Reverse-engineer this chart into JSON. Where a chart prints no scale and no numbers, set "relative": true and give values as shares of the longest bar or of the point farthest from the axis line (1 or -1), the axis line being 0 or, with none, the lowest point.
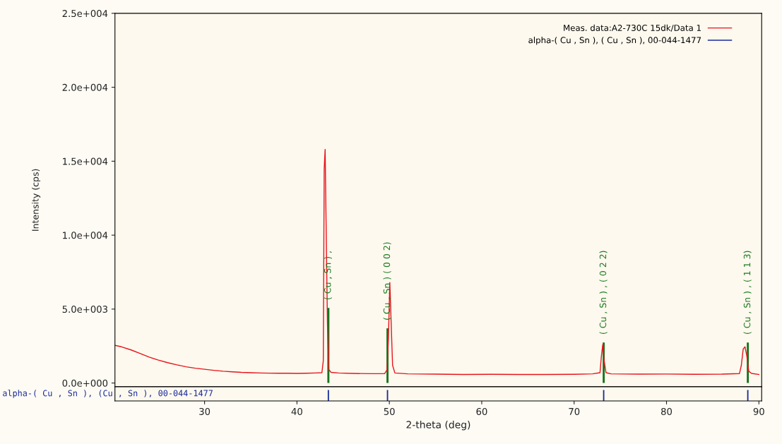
{
  "chart_data": [
    {
      "type": "line",
      "ylabel": "Intensity (cps)",
      "xlim": [
        20.3,
        90.3
      ],
      "ylim": [
        -250,
        25000
      ],
      "yticks": [
        {
          "value": 0,
          "label": "0.0e+000"
        },
        {
          "value": 5000,
          "label": "5.0e+003"
        },
        {
          "value": 10000,
          "label": "1.0e+004"
        },
        {
          "value": 15000,
          "label": "1.5e+004"
        },
        {
          "value": 20000,
          "label": "2.0e+004"
        },
        {
          "value": 25000,
          "label": "2.5e+004"
        }
      ],
      "tick_labels": "y",
      "legend": "top right",
      "grid": false,
      "marker": "none",
      "series": [
        {
          "type": "line",
          "name": "Meas. data:A2-730C 15dk/Data 1",
          "color": "#e8141c",
          "x": [
            20.3,
            21,
            22,
            23,
            24,
            25,
            26,
            27,
            28,
            29,
            30,
            31,
            32,
            33,
            34,
            35,
            36,
            37,
            38,
            39,
            40,
            41,
            42,
            42.7,
            42.85,
            42.95,
            43.05,
            43.15,
            43.3,
            43.45,
            43.7,
            44.5,
            46,
            48,
            49.5,
            49.75,
            49.9,
            50.05,
            50.2,
            50.35,
            50.6,
            52,
            55,
            58,
            61,
            64,
            67,
            70,
            72,
            72.8,
            72.95,
            73.1,
            73.25,
            73.45,
            74,
            77,
            80,
            83,
            86,
            87.9,
            88.1,
            88.3,
            88.5,
            88.7,
            88.9,
            89.2,
            90
          ],
          "values": [
            2550,
            2450,
            2250,
            2000,
            1750,
            1550,
            1380,
            1230,
            1100,
            1000,
            930,
            860,
            800,
            760,
            720,
            700,
            680,
            670,
            660,
            660,
            650,
            660,
            680,
            700,
            1500,
            14500,
            15800,
            11000,
            4000,
            900,
            720,
            680,
            650,
            630,
            640,
            900,
            3000,
            6800,
            4000,
            1200,
            680,
            620,
            600,
            580,
            590,
            580,
            580,
            590,
            620,
            700,
            1800,
            2600,
            1500,
            700,
            620,
            600,
            610,
            590,
            600,
            640,
            1200,
            2300,
            2450,
            1800,
            800,
            650,
            580
          ]
        },
        {
          "type": "bar",
          "color": "#16741c",
          "x": [
            43.4,
            49.8,
            73.2,
            88.8
          ],
          "values": [
            5080,
            3700,
            2740,
            2740
          ]
        }
      ],
      "annotations": [
        {
          "text": "( Cu , Sn ) ,",
          "x": 43.4,
          "y": 5080
        },
        {
          "text": "( Cu , Sn ) ( 0 0 2)",
          "x": 49.8,
          "y": 3700
        },
        {
          "text": "( Cu , Sn ) , ( 0 2 2)",
          "x": 73.2,
          "y": 2740
        },
        {
          "text": "( Cu , Sn ) , ( 1 1 3)",
          "x": 88.8,
          "y": 2740
        }
      ]
    },
    {
      "type": "bar",
      "relative": true,
      "xlabel": "2-theta (deg)",
      "xlim": [
        20.3,
        90.3
      ],
      "xticks": [
        30,
        40,
        50,
        60,
        70,
        80,
        90
      ],
      "tick_labels": "x",
      "series": [
        {
          "name": "alpha-( Cu , Sn ), ( Cu , Sn ), 00-044-1477",
          "color": "#1a2a9c",
          "x": [
            43.4,
            49.8,
            73.2,
            88.8
          ],
          "values": [
            1,
            1,
            1,
            1
          ]
        }
      ],
      "annotations": [
        "alpha-( Cu , Sn ), (Cu , Sn ), 00-044-1477"
      ]
    }
  ]
}
